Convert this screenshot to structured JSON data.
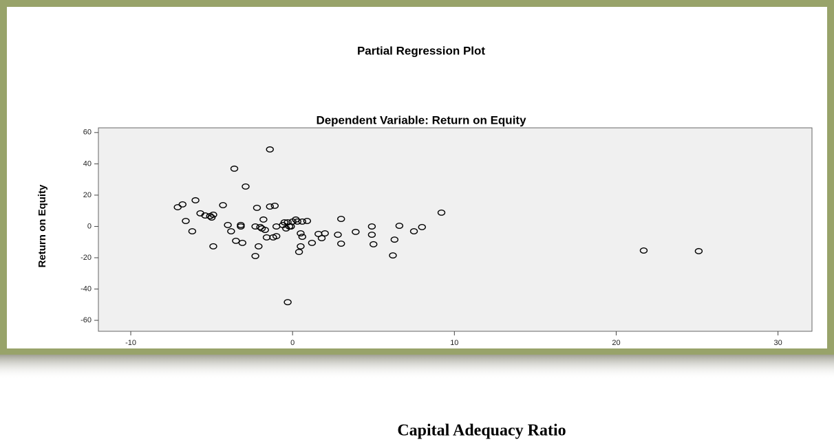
{
  "chart_data": {
    "type": "scatter",
    "title": "Partial Regression Plot",
    "subtitle": "Dependent Variable: Return on Equity",
    "x_label": "Capital Adequacy Ratio",
    "y_label": "Return on Equity",
    "x": [
      -7.1,
      -6.8,
      -6.0,
      -6.6,
      -6.2,
      -5.7,
      -5.4,
      -5.1,
      -4.9,
      -5.0,
      -4.9,
      -4.3,
      -4.0,
      -3.8,
      -3.6,
      -3.5,
      -3.2,
      -3.1,
      -3.2,
      -2.9,
      -2.3,
      -2.3,
      -2.2,
      -2.1,
      -2.0,
      -1.9,
      -1.8,
      -1.7,
      -1.6,
      -1.4,
      -1.4,
      -1.2,
      -1.1,
      -1.0,
      -1.0,
      -0.6,
      -0.5,
      -0.4,
      -0.3,
      -0.2,
      -0.3,
      -0.1,
      0,
      0.2,
      0.3,
      0.4,
      0.5,
      0.5,
      0.6,
      0.6,
      0.9,
      1.2,
      1.6,
      1.8,
      2.0,
      2.8,
      3.0,
      3.0,
      3.9,
      4.9,
      4.9,
      5.0,
      6.2,
      6.3,
      6.6,
      7.5,
      8.0,
      9.2,
      21.7,
      25.1
    ],
    "values": [
      12.3,
      14.1,
      16.7,
      3.5,
      -3.1,
      8.4,
      7.0,
      6.6,
      7.5,
      5.7,
      -12.7,
      13.6,
      0.9,
      -3.1,
      36.9,
      -9.2,
      0.9,
      -10.5,
      0,
      25.5,
      0,
      -18.9,
      11.9,
      -12.7,
      -0.4,
      -1.3,
      4.4,
      -2.2,
      -7.0,
      49.2,
      12.7,
      -7.0,
      13.2,
      0,
      -6.2,
      0.9,
      2.6,
      -1.3,
      2.6,
      0,
      -48.4,
      0,
      3.1,
      4.4,
      3.1,
      -16.3,
      -12.7,
      -4.4,
      -6.6,
      3.1,
      3.5,
      -10.5,
      -4.8,
      -7.5,
      -4.4,
      -5.3,
      4.8,
      -11.0,
      -3.5,
      0,
      -5.3,
      -11.4,
      -18.5,
      -8.4,
      0.4,
      -3.1,
      -0.4,
      8.8,
      -15.4,
      -15.8
    ],
    "color": "#000000",
    "xlim": [
      -12,
      32.1
    ],
    "xticks": [
      -10,
      0,
      10,
      20,
      30
    ],
    "ylim": [
      -67,
      63
    ],
    "yticks": [
      -60,
      -40,
      -20,
      0,
      20,
      40,
      60
    ]
  }
}
